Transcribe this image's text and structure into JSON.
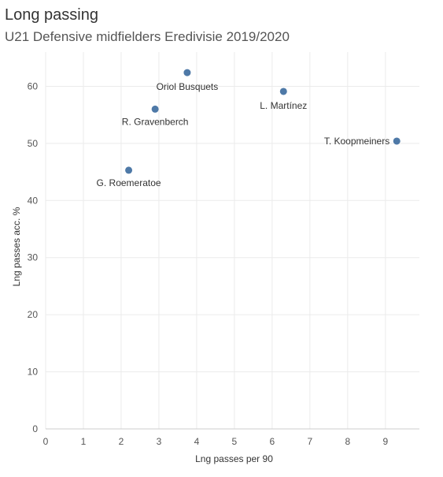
{
  "title": "Long passing",
  "subtitle": "U21 Defensive midfielders Eredivisie 2019/2020",
  "colors": {
    "point": "#4e79a7",
    "grid": "#ebebeb",
    "axis_line": "#cccccc"
  },
  "chart_data": {
    "type": "scatter",
    "xlabel": "Lng passes per 90",
    "ylabel": "Lng passes acc. %",
    "xlim": [
      0,
      9.9
    ],
    "ylim": [
      0,
      66
    ],
    "xticks": [
      0,
      1,
      2,
      3,
      4,
      5,
      6,
      7,
      8,
      9
    ],
    "yticks": [
      0,
      10,
      20,
      30,
      40,
      50,
      60
    ],
    "grid": true,
    "points": [
      {
        "label": "Oriol Busquets",
        "x": 3.75,
        "y": 62.4
      },
      {
        "label": "L. Martínez",
        "x": 6.3,
        "y": 59.1
      },
      {
        "label": "R. Gravenberch",
        "x": 2.9,
        "y": 56.0
      },
      {
        "label": "T. Koopmeiners",
        "x": 9.3,
        "y": 50.4
      },
      {
        "label": "G. Roemeratoe",
        "x": 2.2,
        "y": 45.3
      }
    ]
  }
}
